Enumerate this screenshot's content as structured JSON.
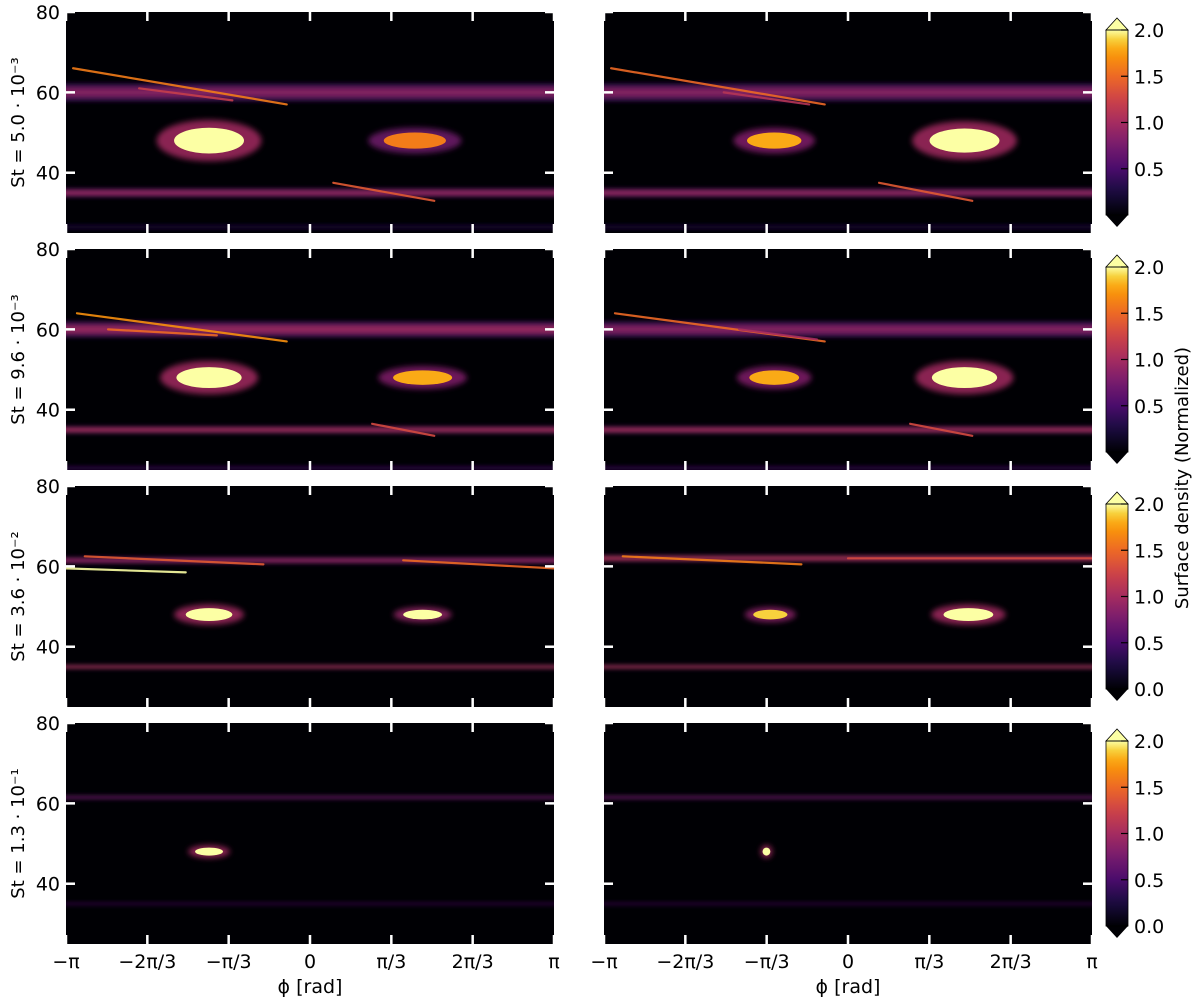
{
  "chart_data": {
    "type": "heatmap",
    "colormap": "inferno",
    "color_range": [
      0,
      2.0
    ],
    "colorbar_label": "Surface density (Normalized)",
    "xlabel": "ϕ [rad]",
    "x_range": [
      -3.14159,
      3.14159
    ],
    "x_ticks": [
      -3.14159,
      -2.0944,
      -1.0472,
      0,
      1.0472,
      2.0944,
      3.14159
    ],
    "x_tick_labels": [
      "−π",
      "−2π/3",
      "−π/3",
      "0",
      "π/3",
      "2π/3",
      "π"
    ],
    "y_range": [
      25,
      80
    ],
    "y_ticks": [
      40,
      60,
      80
    ],
    "y_tick_labels": [
      "40",
      "60",
      "80"
    ],
    "columns": 2,
    "rows": [
      {
        "label": "St = 5.0 · 10⁻³",
        "colorbar_ticks": [
          "0.5",
          "1.0",
          "1.5",
          "2.0"
        ],
        "colorbar_tick_values": [
          0.5,
          1.0,
          1.5,
          2.0
        ],
        "panels": [
          {
            "rings": [
              {
                "r": 60,
                "width": 4.5,
                "density": 0.9
              },
              {
                "r": 35,
                "width": 2.2,
                "density": 1.0
              },
              {
                "r": 26.5,
                "width": 1.0,
                "density": 0.3
              }
            ],
            "clumps": [
              {
                "phi": -1.3,
                "r": 48,
                "dphi": 0.45,
                "dr": 1.6,
                "density": 2.2
              },
              {
                "phi": 1.35,
                "r": 48,
                "dphi": 0.4,
                "dr": 1.0,
                "density": 1.6
              }
            ],
            "streaks": [
              {
                "phi0": -3.05,
                "r0": 66,
                "phi1": -0.3,
                "r1": 57,
                "density": 1.6
              },
              {
                "phi0": -2.2,
                "r0": 61,
                "phi1": -1.0,
                "r1": 58,
                "density": 1.2
              },
              {
                "phi0": 0.3,
                "r0": 37.5,
                "phi1": 1.6,
                "r1": 33,
                "density": 1.4
              }
            ]
          },
          {
            "rings": [
              {
                "r": 60,
                "width": 4.5,
                "density": 0.9
              },
              {
                "r": 35,
                "width": 2.2,
                "density": 1.0
              },
              {
                "r": 26.5,
                "width": 1.0,
                "density": 0.3
              }
            ],
            "clumps": [
              {
                "phi": -0.95,
                "r": 48,
                "dphi": 0.35,
                "dr": 1.0,
                "density": 1.8
              },
              {
                "phi": 1.5,
                "r": 48,
                "dphi": 0.45,
                "dr": 1.5,
                "density": 2.2
              }
            ],
            "streaks": [
              {
                "phi0": -3.05,
                "r0": 66,
                "phi1": -0.3,
                "r1": 57,
                "density": 1.5
              },
              {
                "phi0": -1.6,
                "r0": 60,
                "phi1": -0.5,
                "r1": 57,
                "density": 1.1
              },
              {
                "phi0": 0.4,
                "r0": 37.5,
                "phi1": 1.6,
                "r1": 33,
                "density": 1.4
              }
            ]
          }
        ]
      },
      {
        "label": "St = 9.6 · 10⁻³",
        "colorbar_ticks": [
          "0.5",
          "1.0",
          "1.5",
          "2.0"
        ],
        "colorbar_tick_values": [
          0.5,
          1.0,
          1.5,
          2.0
        ],
        "panels": [
          {
            "rings": [
              {
                "r": 60,
                "width": 4.0,
                "density": 1.0
              },
              {
                "r": 35,
                "width": 1.8,
                "density": 1.1
              },
              {
                "r": 25.5,
                "width": 0.8,
                "density": 0.5
              }
            ],
            "clumps": [
              {
                "phi": -1.3,
                "r": 48,
                "dphi": 0.42,
                "dr": 1.3,
                "density": 2.2
              },
              {
                "phi": 1.45,
                "r": 48,
                "dphi": 0.38,
                "dr": 0.9,
                "density": 1.8
              }
            ],
            "streaks": [
              {
                "phi0": -3.0,
                "r0": 64,
                "phi1": -0.3,
                "r1": 57,
                "density": 1.7
              },
              {
                "phi0": -2.6,
                "r0": 60,
                "phi1": -1.2,
                "r1": 58.5,
                "density": 1.5
              },
              {
                "phi0": 0.8,
                "r0": 36.5,
                "phi1": 1.6,
                "r1": 33.5,
                "density": 1.3
              }
            ]
          },
          {
            "rings": [
              {
                "r": 60,
                "width": 4.0,
                "density": 0.9
              },
              {
                "r": 35,
                "width": 1.8,
                "density": 1.1
              },
              {
                "r": 25.5,
                "width": 0.8,
                "density": 0.5
              }
            ],
            "clumps": [
              {
                "phi": -0.95,
                "r": 48,
                "dphi": 0.32,
                "dr": 0.9,
                "density": 1.8
              },
              {
                "phi": 1.5,
                "r": 48,
                "dphi": 0.42,
                "dr": 1.3,
                "density": 2.2
              }
            ],
            "streaks": [
              {
                "phi0": -3.0,
                "r0": 64,
                "phi1": -0.3,
                "r1": 57,
                "density": 1.5
              },
              {
                "phi0": -1.4,
                "r0": 60,
                "phi1": -0.4,
                "r1": 57.5,
                "density": 1.0
              },
              {
                "phi0": 0.8,
                "r0": 36.5,
                "phi1": 1.6,
                "r1": 33.5,
                "density": 1.3
              }
            ]
          }
        ]
      },
      {
        "label": "St = 3.6 · 10⁻²",
        "colorbar_ticks": [
          "0.0",
          "0.5",
          "1.0",
          "1.5",
          "2.0"
        ],
        "colorbar_tick_values": [
          0.0,
          0.5,
          1.0,
          1.5,
          2.0
        ],
        "panels": [
          {
            "rings": [
              {
                "r": 61.5,
                "width": 1.6,
                "density": 1.0
              },
              {
                "r": 35,
                "width": 1.0,
                "density": 1.2
              }
            ],
            "clumps": [
              {
                "phi": -1.3,
                "r": 48,
                "dphi": 0.3,
                "dr": 0.8,
                "density": 2.2
              },
              {
                "phi": 1.45,
                "r": 48,
                "dphi": 0.25,
                "dr": 0.6,
                "density": 2.0
              }
            ],
            "streaks": [
              {
                "phi0": -3.14,
                "r0": 59.5,
                "phi1": -1.6,
                "r1": 58.5,
                "density": 2.2
              },
              {
                "phi0": -2.9,
                "r0": 62.5,
                "phi1": -0.6,
                "r1": 60.5,
                "density": 1.4
              },
              {
                "phi0": 1.2,
                "r0": 61.5,
                "phi1": 3.14,
                "r1": 59.5,
                "density": 1.5
              }
            ]
          },
          {
            "rings": [
              {
                "r": 62,
                "width": 1.6,
                "density": 1.2
              },
              {
                "r": 35,
                "width": 1.0,
                "density": 1.2
              }
            ],
            "clumps": [
              {
                "phi": -1.0,
                "r": 48,
                "dphi": 0.22,
                "dr": 0.6,
                "density": 1.9
              },
              {
                "phi": 1.55,
                "r": 48,
                "dphi": 0.32,
                "dr": 0.8,
                "density": 2.2
              }
            ],
            "streaks": [
              {
                "phi0": -2.9,
                "r0": 62.5,
                "phi1": -0.6,
                "r1": 60.5,
                "density": 1.6
              },
              {
                "phi0": 0.0,
                "r0": 62,
                "phi1": 3.14,
                "r1": 62,
                "density": 1.3
              }
            ]
          }
        ]
      },
      {
        "label": "St = 1.3 · 10⁻¹",
        "colorbar_ticks": [
          "0.0",
          "0.5",
          "1.0",
          "1.5",
          "2.0"
        ],
        "colorbar_tick_values": [
          0.0,
          0.5,
          1.0,
          1.5,
          2.0
        ],
        "panels": [
          {
            "rings": [
              {
                "r": 61.5,
                "width": 0.9,
                "density": 0.8
              },
              {
                "r": 35,
                "width": 0.5,
                "density": 0.6
              }
            ],
            "clumps": [
              {
                "phi": -1.3,
                "r": 48,
                "dphi": 0.18,
                "dr": 0.5,
                "density": 2.2
              }
            ],
            "streaks": []
          },
          {
            "rings": [
              {
                "r": 61.5,
                "width": 0.9,
                "density": 0.8
              },
              {
                "r": 35,
                "width": 0.5,
                "density": 0.6
              }
            ],
            "clumps": [
              {
                "phi": -1.05,
                "r": 48,
                "dphi": 0.05,
                "dr": 0.5,
                "density": 2.2
              }
            ],
            "streaks": []
          }
        ]
      }
    ]
  }
}
